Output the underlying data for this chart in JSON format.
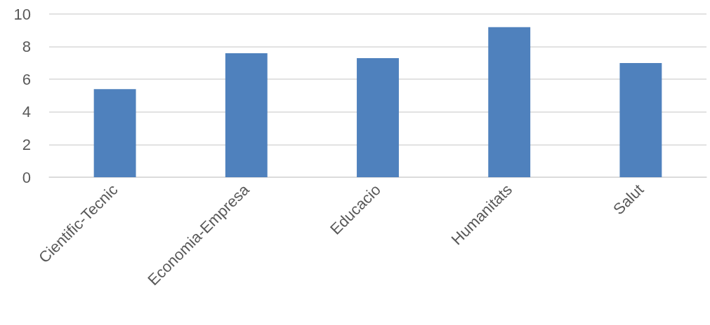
{
  "chart_data": {
    "type": "bar",
    "categories": [
      "Cientific-Tecnic",
      "Economia-Empresa",
      "Educacio",
      "Humanitats",
      "Salut"
    ],
    "values": [
      5.4,
      7.6,
      7.3,
      9.2,
      7.0
    ],
    "color": "#4f81bd",
    "ylim": [
      0,
      10
    ],
    "yticks": [
      0,
      2,
      4,
      6,
      8,
      10
    ],
    "grid": "y"
  }
}
